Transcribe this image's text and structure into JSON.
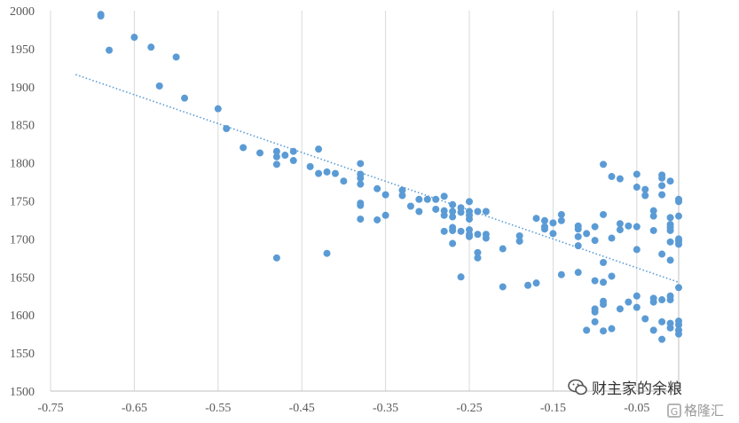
{
  "chart_data": {
    "type": "scatter",
    "title": "",
    "xlabel": "",
    "ylabel": "",
    "xlim": [
      -0.75,
      0.0
    ],
    "ylim": [
      1500,
      2000
    ],
    "x_ticks": [
      "-0.75",
      "-0.65",
      "-0.55",
      "-0.45",
      "-0.35",
      "-0.25",
      "-0.15",
      "-0.05"
    ],
    "y_ticks": [
      "1500",
      "1550",
      "1600",
      "1650",
      "1700",
      "1750",
      "1800",
      "1850",
      "1900",
      "1950",
      "2000"
    ],
    "grid": "vertical",
    "point_color": "#5B9BD5",
    "trendline": {
      "style": "dotted",
      "x": [
        -0.72,
        0.0
      ],
      "y": [
        1916,
        1643
      ]
    },
    "points": [
      [
        -0.69,
        1995
      ],
      [
        -0.69,
        1993
      ],
      [
        -0.68,
        1948
      ],
      [
        -0.65,
        1965
      ],
      [
        -0.63,
        1952
      ],
      [
        -0.62,
        1901
      ],
      [
        -0.6,
        1939
      ],
      [
        -0.59,
        1885
      ],
      [
        -0.55,
        1871
      ],
      [
        -0.54,
        1845
      ],
      [
        -0.52,
        1820
      ],
      [
        -0.5,
        1813
      ],
      [
        -0.48,
        1815
      ],
      [
        -0.48,
        1808
      ],
      [
        -0.48,
        1798
      ],
      [
        -0.48,
        1675
      ],
      [
        -0.47,
        1810
      ],
      [
        -0.46,
        1815
      ],
      [
        -0.46,
        1803
      ],
      [
        -0.44,
        1795
      ],
      [
        -0.43,
        1818
      ],
      [
        -0.43,
        1786
      ],
      [
        -0.42,
        1788
      ],
      [
        -0.42,
        1681
      ],
      [
        -0.41,
        1786
      ],
      [
        -0.4,
        1776
      ],
      [
        -0.38,
        1799
      ],
      [
        -0.38,
        1785
      ],
      [
        -0.38,
        1780
      ],
      [
        -0.38,
        1772
      ],
      [
        -0.38,
        1747
      ],
      [
        -0.38,
        1744
      ],
      [
        -0.38,
        1726
      ],
      [
        -0.36,
        1766
      ],
      [
        -0.36,
        1725
      ],
      [
        -0.35,
        1758
      ],
      [
        -0.35,
        1731
      ],
      [
        -0.33,
        1764
      ],
      [
        -0.33,
        1757
      ],
      [
        -0.32,
        1743
      ],
      [
        -0.31,
        1752
      ],
      [
        -0.31,
        1736
      ],
      [
        -0.3,
        1752
      ],
      [
        -0.29,
        1752
      ],
      [
        -0.29,
        1739
      ],
      [
        -0.28,
        1756
      ],
      [
        -0.28,
        1737
      ],
      [
        -0.28,
        1731
      ],
      [
        -0.28,
        1710
      ],
      [
        -0.27,
        1745
      ],
      [
        -0.27,
        1736
      ],
      [
        -0.27,
        1729
      ],
      [
        -0.27,
        1715
      ],
      [
        -0.27,
        1711
      ],
      [
        -0.27,
        1694
      ],
      [
        -0.26,
        1741
      ],
      [
        -0.26,
        1735
      ],
      [
        -0.26,
        1710
      ],
      [
        -0.26,
        1650
      ],
      [
        -0.25,
        1749
      ],
      [
        -0.25,
        1736
      ],
      [
        -0.25,
        1731
      ],
      [
        -0.25,
        1726
      ],
      [
        -0.25,
        1712
      ],
      [
        -0.25,
        1706
      ],
      [
        -0.25,
        1703
      ],
      [
        -0.24,
        1736
      ],
      [
        -0.24,
        1706
      ],
      [
        -0.24,
        1682
      ],
      [
        -0.24,
        1675
      ],
      [
        -0.23,
        1736
      ],
      [
        -0.23,
        1706
      ],
      [
        -0.23,
        1701
      ],
      [
        -0.21,
        1687
      ],
      [
        -0.21,
        1637
      ],
      [
        -0.19,
        1704
      ],
      [
        -0.19,
        1697
      ],
      [
        -0.18,
        1639
      ],
      [
        -0.17,
        1727
      ],
      [
        -0.17,
        1642
      ],
      [
        -0.16,
        1724
      ],
      [
        -0.16,
        1716
      ],
      [
        -0.16,
        1713
      ],
      [
        -0.15,
        1721
      ],
      [
        -0.15,
        1707
      ],
      [
        -0.14,
        1732
      ],
      [
        -0.14,
        1724
      ],
      [
        -0.14,
        1653
      ],
      [
        -0.12,
        1717
      ],
      [
        -0.12,
        1713
      ],
      [
        -0.12,
        1703
      ],
      [
        -0.12,
        1691
      ],
      [
        -0.12,
        1656
      ],
      [
        -0.11,
        1707
      ],
      [
        -0.11,
        1580
      ],
      [
        -0.1,
        1716
      ],
      [
        -0.1,
        1698
      ],
      [
        -0.1,
        1645
      ],
      [
        -0.1,
        1608
      ],
      [
        -0.1,
        1604
      ],
      [
        -0.1,
        1591
      ],
      [
        -0.09,
        1798
      ],
      [
        -0.09,
        1732
      ],
      [
        -0.09,
        1669
      ],
      [
        -0.09,
        1643
      ],
      [
        -0.09,
        1618
      ],
      [
        -0.09,
        1614
      ],
      [
        -0.09,
        1579
      ],
      [
        -0.08,
        1782
      ],
      [
        -0.08,
        1701
      ],
      [
        -0.08,
        1651
      ],
      [
        -0.08,
        1582
      ],
      [
        -0.07,
        1779
      ],
      [
        -0.07,
        1720
      ],
      [
        -0.07,
        1712
      ],
      [
        -0.07,
        1608
      ],
      [
        -0.06,
        1717
      ],
      [
        -0.06,
        1617
      ],
      [
        -0.05,
        1785
      ],
      [
        -0.05,
        1768
      ],
      [
        -0.05,
        1716
      ],
      [
        -0.05,
        1686
      ],
      [
        -0.05,
        1625
      ],
      [
        -0.05,
        1610
      ],
      [
        -0.04,
        1765
      ],
      [
        -0.04,
        1757
      ],
      [
        -0.04,
        1595
      ],
      [
        -0.03,
        1737
      ],
      [
        -0.03,
        1730
      ],
      [
        -0.03,
        1711
      ],
      [
        -0.03,
        1622
      ],
      [
        -0.03,
        1617
      ],
      [
        -0.03,
        1580
      ],
      [
        -0.02,
        1784
      ],
      [
        -0.02,
        1780
      ],
      [
        -0.02,
        1770
      ],
      [
        -0.02,
        1758
      ],
      [
        -0.02,
        1680
      ],
      [
        -0.02,
        1620
      ],
      [
        -0.02,
        1591
      ],
      [
        -0.02,
        1568
      ],
      [
        -0.01,
        1776
      ],
      [
        -0.01,
        1728
      ],
      [
        -0.01,
        1719
      ],
      [
        -0.01,
        1715
      ],
      [
        -0.01,
        1711
      ],
      [
        -0.01,
        1696
      ],
      [
        -0.01,
        1672
      ],
      [
        -0.01,
        1625
      ],
      [
        -0.01,
        1620
      ],
      [
        -0.01,
        1589
      ],
      [
        -0.01,
        1583
      ],
      [
        0.0,
        1752
      ],
      [
        0.0,
        1749
      ],
      [
        0.0,
        1730
      ],
      [
        0.0,
        1700
      ],
      [
        0.0,
        1697
      ],
      [
        0.0,
        1693
      ],
      [
        0.0,
        1636
      ],
      [
        0.0,
        1592
      ],
      [
        0.0,
        1587
      ],
      [
        0.0,
        1580
      ],
      [
        0.0,
        1575
      ]
    ]
  },
  "watermark": {
    "text": "财主家的余粮",
    "icon": "wechat-icon"
  },
  "logo": {
    "text": "格隆汇",
    "icon": "g-logo-icon"
  }
}
